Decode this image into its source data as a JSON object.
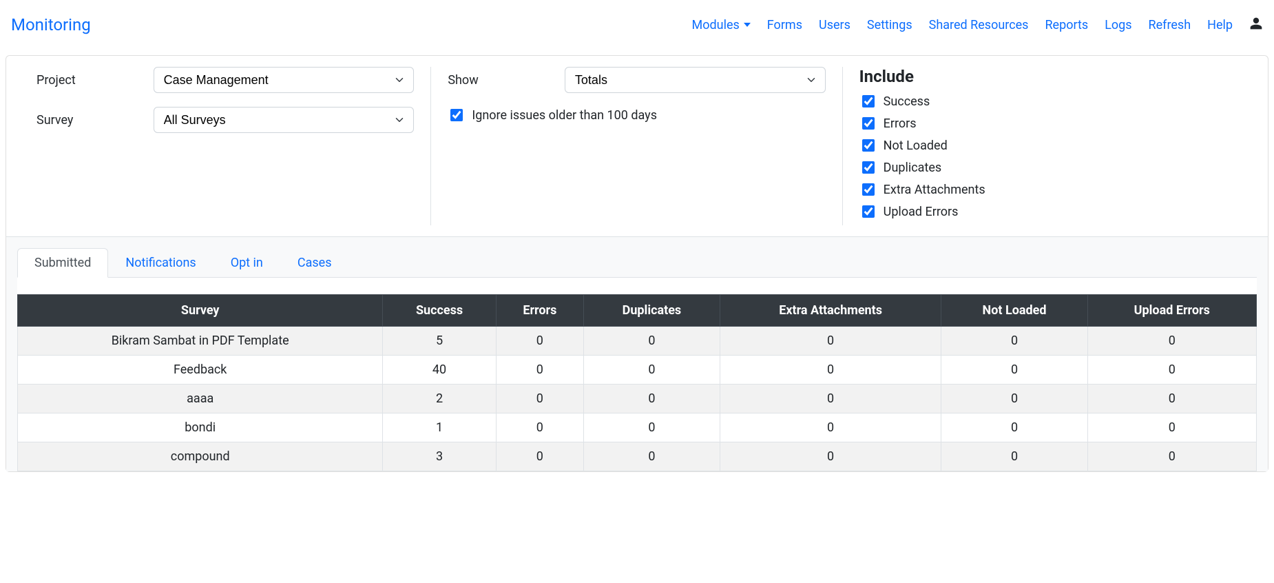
{
  "brand": "Monitoring",
  "nav": {
    "modules": "Modules",
    "forms": "Forms",
    "users": "Users",
    "settings": "Settings",
    "shared_resources": "Shared Resources",
    "reports": "Reports",
    "logs": "Logs",
    "refresh": "Refresh",
    "help": "Help"
  },
  "filters": {
    "project_label": "Project",
    "project_value": "Case Management",
    "survey_label": "Survey",
    "survey_value": "All Surveys",
    "show_label": "Show",
    "show_value": "Totals",
    "ignore_label": "Ignore issues older than 100 days",
    "ignore_checked": true,
    "include_heading": "Include",
    "include": {
      "success": "Success",
      "errors": "Errors",
      "not_loaded": "Not Loaded",
      "duplicates": "Duplicates",
      "extra_attachments": "Extra Attachments",
      "upload_errors": "Upload Errors"
    }
  },
  "tabs": {
    "submitted": "Submitted",
    "notifications": "Notifications",
    "optin": "Opt in",
    "cases": "Cases"
  },
  "table": {
    "columns": [
      "Survey",
      "Success",
      "Errors",
      "Duplicates",
      "Extra Attachments",
      "Not Loaded",
      "Upload Errors"
    ],
    "rows": [
      [
        "Bikram Sambat in PDF Template",
        5,
        0,
        0,
        0,
        0,
        0
      ],
      [
        "Feedback",
        40,
        0,
        0,
        0,
        0,
        0
      ],
      [
        "aaaa",
        2,
        0,
        0,
        0,
        0,
        0
      ],
      [
        "bondi",
        1,
        0,
        0,
        0,
        0,
        0
      ],
      [
        "compound",
        3,
        0,
        0,
        0,
        0,
        0
      ]
    ],
    "header_bg": "#343a40",
    "header_fg": "#ffffff",
    "stripe_odd": "#f2f2f2",
    "stripe_even": "#ffffff"
  },
  "colors": {
    "link": "#0d6efd",
    "border": "#dee2e6",
    "panel_bg": "#f8f9fa"
  }
}
